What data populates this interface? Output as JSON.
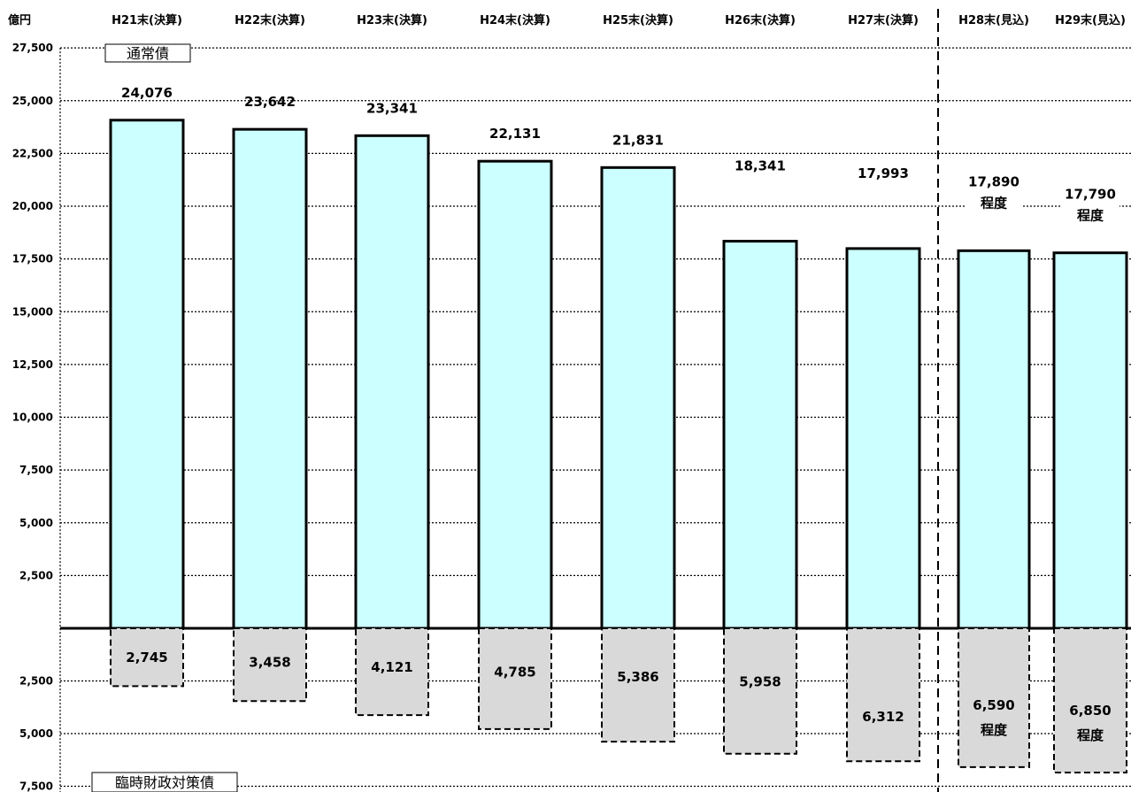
{
  "chart_data": {
    "type": "bar",
    "unit_label": "億円",
    "categories": [
      "H21末(決算)",
      "H22末(決算)",
      "H23末(決算)",
      "H24末(決算)",
      "H25末(決算)",
      "H26末(決算)",
      "H27末(決算)",
      "H28末(見込)",
      "H29末(見込)"
    ],
    "series": [
      {
        "name": "通常債",
        "values": [
          24076,
          23642,
          23341,
          22131,
          21831,
          18341,
          17993,
          17890,
          17790
        ],
        "labels": [
          "24,076",
          "23,642",
          "23,341",
          "22,131",
          "21,831",
          "18,341",
          "17,993",
          "17,890",
          "17,790"
        ],
        "color": "#ccffff"
      },
      {
        "name": "臨時財政対策債",
        "values": [
          2745,
          3458,
          4121,
          4785,
          5386,
          5958,
          6312,
          6590,
          6850
        ],
        "labels": [
          "2,745",
          "3,458",
          "4,121",
          "4,785",
          "5,386",
          "5,958",
          "6,312",
          "6,590",
          "6,850"
        ],
        "color": "#d9d9d9"
      }
    ],
    "approx_suffix": "程度",
    "approx_categories": [
      7,
      8
    ],
    "yticks_upper": [
      "27,500",
      "25,000",
      "22,500",
      "20,000",
      "17,500",
      "15,000",
      "12,500",
      "10,000",
      "7,500",
      "5,000",
      "2,500"
    ],
    "yticks_lower": [
      "2,500",
      "5,000",
      "7,500"
    ],
    "ylim_upper": [
      0,
      27500
    ],
    "ylim_lower": [
      0,
      7500
    ],
    "grid": true,
    "forecast_divider": true
  }
}
